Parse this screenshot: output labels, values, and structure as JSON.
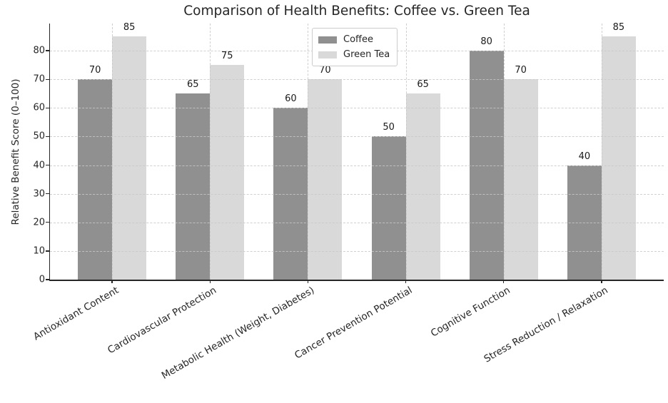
{
  "chart_data": {
    "type": "bar",
    "title": "Comparison of Health Benefits: Coffee vs. Green Tea",
    "xlabel": "",
    "ylabel": "Relative Benefit Score (0–100)",
    "categories": [
      "Antioxidant Content",
      "Cardiovascular Protection",
      "Metabolic Health (Weight, Diabetes)",
      "Cancer Prevention Potential",
      "Cognitive Function",
      "Stress Reduction / Relaxation"
    ],
    "series": [
      {
        "name": "Coffee",
        "color": "#909090",
        "values": [
          70,
          65,
          60,
          50,
          80,
          40
        ]
      },
      {
        "name": "Green Tea",
        "color": "#d9d9d9",
        "values": [
          85,
          75,
          70,
          65,
          70,
          85
        ]
      }
    ],
    "yticks": [
      0,
      10,
      20,
      30,
      40,
      50,
      60,
      70,
      80
    ],
    "ylim": [
      0,
      89.5
    ],
    "grid": "dashed, horizontal and vertical, drawn above bars",
    "legend_position": "upper center",
    "bar_value_labels": true,
    "xtick_rotation_deg": 30
  },
  "colors": {
    "background": "#ffffff",
    "axis": "#262626",
    "grid": "#c8c8c8",
    "text": "#1a1a1a"
  }
}
